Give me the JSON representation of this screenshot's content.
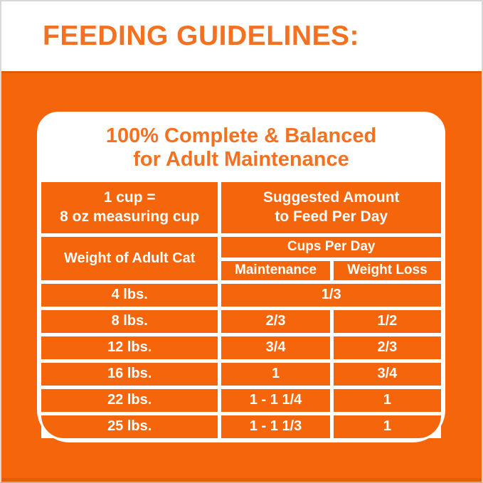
{
  "colors": {
    "background_orange": "#F5650B",
    "heading_orange_text": "#F37121",
    "table_text_white": "#FFFFFF",
    "band_shadow_orange": "#E35A04"
  },
  "header": {
    "title": "FEEDING GUIDELINES:"
  },
  "card": {
    "title": {
      "line1": "100% Complete & Balanced",
      "line2": "for Adult Maintenance"
    },
    "intro": {
      "left_line1": "1 cup =",
      "left_line2": "8 oz measuring cup",
      "right_line1": "Suggested Amount",
      "right_line2": "to Feed Per Day"
    },
    "columns": {
      "weight": "Weight of Adult Cat",
      "cups_per_day": "Cups Per Day",
      "maintenance": "Maintenance",
      "weight_loss": "Weight Loss"
    },
    "rows": [
      {
        "weight": "4 lbs.",
        "maintenance": "1/3",
        "weight_loss": ""
      },
      {
        "weight": "8 lbs.",
        "maintenance": "2/3",
        "weight_loss": "1/2"
      },
      {
        "weight": "12 lbs.",
        "maintenance": "3/4",
        "weight_loss": "2/3"
      },
      {
        "weight": "16 lbs.",
        "maintenance": "1",
        "weight_loss": "3/4"
      },
      {
        "weight": "22 lbs.",
        "maintenance": "1 - 1 1/4",
        "weight_loss": "1"
      },
      {
        "weight": "25 lbs.",
        "maintenance": "1 - 1 1/3",
        "weight_loss": "1"
      }
    ]
  },
  "chart_data": {
    "type": "table",
    "title": "FEEDING GUIDELINES: 100% Complete & Balanced for Adult Maintenance",
    "note": "1 cup = 8 oz measuring cup; Suggested Amount to Feed Per Day (Cups Per Day)",
    "columns": [
      "Weight of Adult Cat",
      "Maintenance",
      "Weight Loss"
    ],
    "rows": [
      [
        "4 lbs.",
        "1/3",
        "1/3 (single merged value)"
      ],
      [
        "8 lbs.",
        "2/3",
        "1/2"
      ],
      [
        "12 lbs.",
        "3/4",
        "2/3"
      ],
      [
        "16 lbs.",
        "1",
        "3/4"
      ],
      [
        "22 lbs.",
        "1 - 1 1/4",
        "1"
      ],
      [
        "25 lbs.",
        "1 - 1 1/3",
        "1"
      ]
    ]
  }
}
